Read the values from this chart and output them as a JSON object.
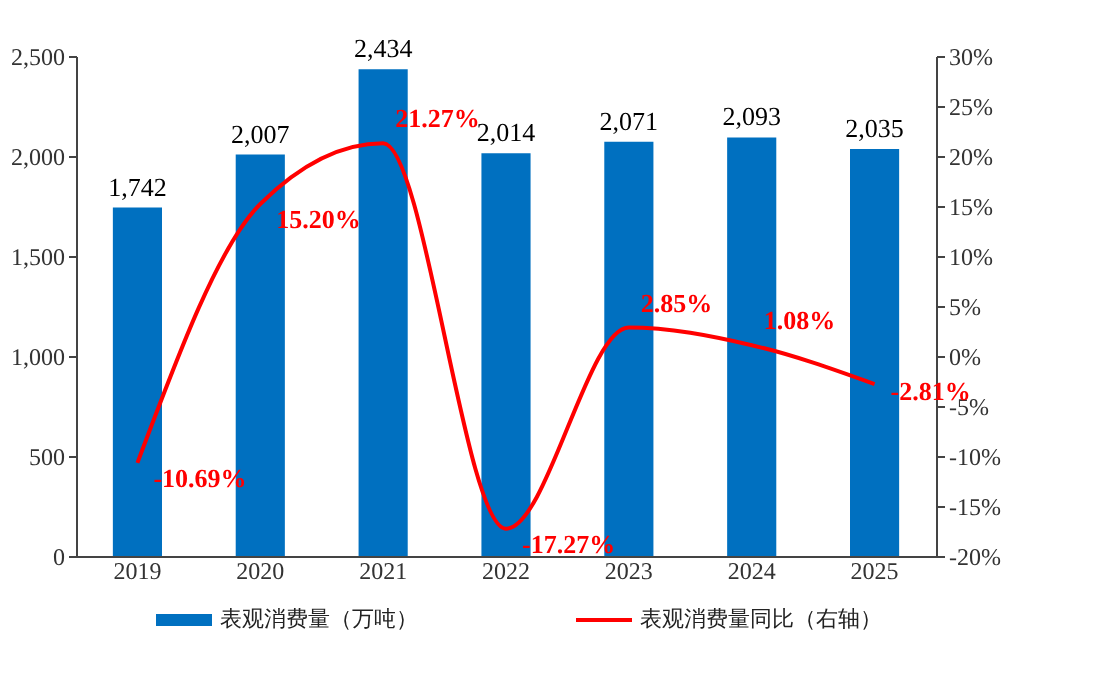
{
  "chart_data": {
    "type": "bar",
    "categories": [
      "2019",
      "2020",
      "2021",
      "2022",
      "2023",
      "2024",
      "2025"
    ],
    "series": [
      {
        "name": "表观消费量（万吨）",
        "color": "#0070c0",
        "values": [
          1742,
          2007,
          2434,
          2014,
          2071,
          2093,
          2035
        ],
        "value_labels": [
          "1,742",
          "2,007",
          "2,434",
          "2,014",
          "2,071",
          "2,093",
          "2,035"
        ]
      },
      {
        "name": "表观消费量同比（右轴）",
        "type": "line",
        "axis": "y2",
        "color": "#ff0000",
        "values": [
          -10.69,
          15.2,
          21.27,
          -17.27,
          2.85,
          1.08,
          -2.81
        ],
        "value_labels": [
          "-10.69%",
          "15.20%",
          "21.27%",
          "-17.27%",
          "2.85%",
          "1.08%",
          "-2.81%"
        ]
      }
    ],
    "ylim": [
      0,
      2500
    ],
    "yticks": [
      0,
      500,
      {
        "value": 1000,
        "label": "1,000"
      },
      {
        "value": 1500,
        "label": "1,500"
      },
      {
        "value": 2000,
        "label": "2,000"
      },
      {
        "value": 2500,
        "label": "2,500"
      }
    ],
    "y2lim": [
      -20,
      30
    ],
    "y2ticks": [
      {
        "value": -20,
        "label": "-20%"
      },
      {
        "value": -15,
        "label": "-15%"
      },
      {
        "value": -10,
        "label": "-10%"
      },
      {
        "value": -5,
        "label": "-5%"
      },
      {
        "value": 0,
        "label": "0%"
      },
      {
        "value": 5,
        "label": "5%"
      },
      {
        "value": 10,
        "label": "10%"
      },
      {
        "value": 15,
        "label": "15%"
      },
      {
        "value": 20,
        "label": "20%"
      },
      {
        "value": 25,
        "label": "25%"
      },
      {
        "value": 30,
        "label": "30%"
      }
    ],
    "legend": "bottom",
    "grid": false
  }
}
